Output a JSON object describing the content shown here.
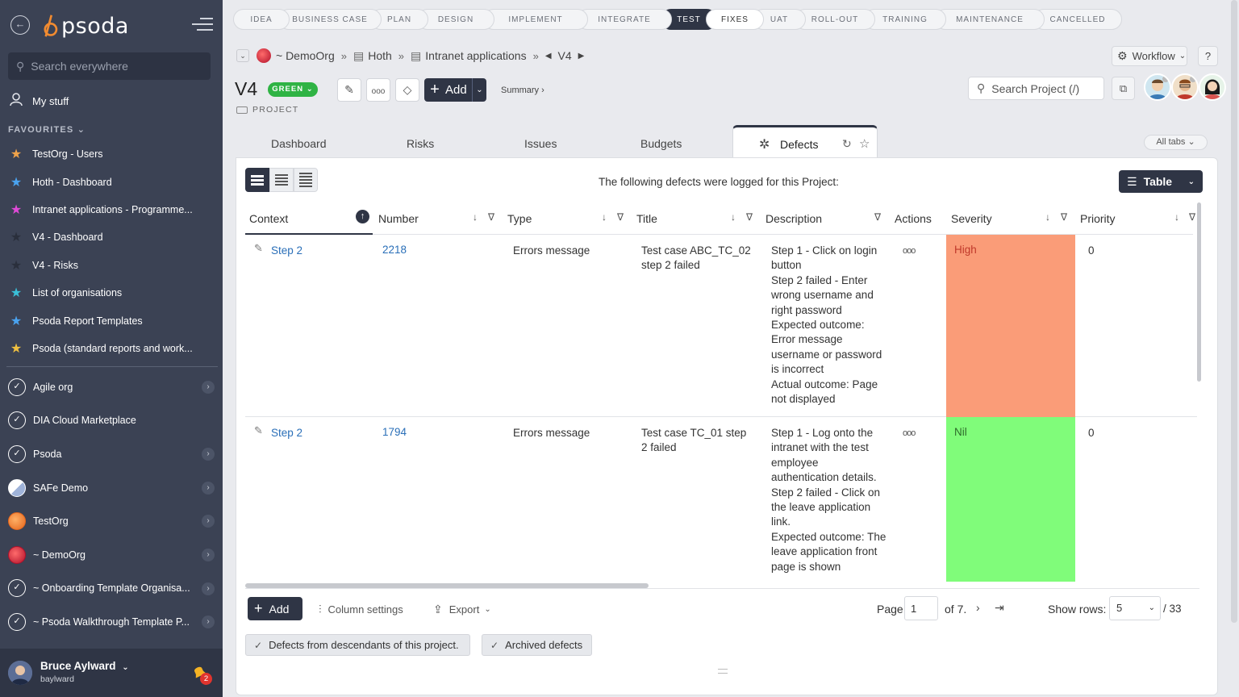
{
  "sidebar": {
    "brand": "psoda",
    "search_placeholder": "Search everywhere",
    "my_stuff": "My stuff",
    "favourites_heading": "FAVOURITES",
    "favourites": [
      {
        "label": "TestOrg - Users",
        "color": "#f0a34a"
      },
      {
        "label": "Hoth - Dashboard",
        "color": "#4aa3f0"
      },
      {
        "label": "Intranet applications - Programme...",
        "color": "#e04ad8"
      },
      {
        "label": "V4 - Dashboard",
        "color": "#2a2f3c"
      },
      {
        "label": "V4 - Risks",
        "color": "#2a2f3c"
      },
      {
        "label": "List of organisations",
        "color": "#3ac0d8"
      },
      {
        "label": "Psoda Report Templates",
        "color": "#4aa3f0"
      },
      {
        "label": "Psoda (standard reports and work...",
        "color": "#f0c040"
      }
    ],
    "orgs": [
      {
        "label": "Agile org",
        "chevron": true,
        "icon": "compass"
      },
      {
        "label": "DIA Cloud Marketplace",
        "chevron": false,
        "icon": "compass"
      },
      {
        "label": "Psoda",
        "chevron": true,
        "icon": "compass"
      },
      {
        "label": "SAFe Demo",
        "chevron": true,
        "icon": "safe"
      },
      {
        "label": "TestOrg",
        "chevron": true,
        "icon": "orange"
      },
      {
        "label": "~ DemoOrg",
        "chevron": true,
        "icon": "red"
      },
      {
        "label": "~ Onboarding Template Organisa...",
        "chevron": true,
        "icon": "compass"
      },
      {
        "label": "~ Psoda Walkthrough Template P...",
        "chevron": true,
        "icon": "compass"
      }
    ],
    "user": {
      "name": "Bruce Aylward",
      "handle": "baylward",
      "notifications": "2"
    }
  },
  "stages": [
    "IDEA",
    "BUSINESS CASE",
    "PLAN",
    "DESIGN",
    "IMPLEMENT",
    "INTEGRATE",
    "TEST",
    "FIXES",
    "UAT",
    "ROLL-OUT",
    "TRAINING",
    "MAINTENANCE",
    "CANCELLED"
  ],
  "active_stage": "TEST",
  "breadcrumb": {
    "org": "~ DemoOrg",
    "programme": "Hoth",
    "portfolio": "Intranet applications",
    "project": "V4"
  },
  "header": {
    "workflow": "Workflow",
    "help": "?",
    "title": "V4",
    "status": "GREEN",
    "type": "PROJECT",
    "add": "Add",
    "summary": "Summary ›",
    "search_placeholder": "Search Project (/)"
  },
  "tabs": {
    "items": [
      "Dashboard",
      "Risks",
      "Issues",
      "Budgets"
    ],
    "active": "Defects",
    "all_tabs": "All tabs"
  },
  "panel": {
    "caption": "The following defects were logged for this Project:",
    "view_mode": "Table",
    "columns": [
      "Context",
      "Number",
      "Type",
      "Title",
      "Description",
      "Actions",
      "Severity",
      "Priority"
    ],
    "rows": [
      {
        "context": "Step 2",
        "number": "2218",
        "type": "Errors message",
        "title": "Test case ABC_TC_02 step 2 failed",
        "description": "Step 1 - Click on login button\nStep 2 failed - Enter wrong username and right password\nExpected outcome: Error message username or password is incorrect\nActual outcome: Page not displayed",
        "severity": "High",
        "severity_color": "#fa9c78",
        "severity_text_color": "#c0392b",
        "priority": "0"
      },
      {
        "context": "Step 2",
        "number": "1794",
        "type": "Errors message",
        "title": "Test case TC_01 step 2 failed",
        "description": "Step 1 - Log onto the intranet with the test employee authentication details.\nStep 2 failed - Click on the leave application link.\nExpected outcome: The leave application front page is shown",
        "severity": "Nil",
        "severity_color": "#80fc7a",
        "severity_text_color": "#2d6a2a",
        "priority": "0"
      }
    ],
    "footer": {
      "add": "Add",
      "column_settings": "Column settings",
      "export": "Export",
      "page_label": "Page",
      "page_value": "1",
      "of_label": "of 7.",
      "show_rows_label": "Show rows:",
      "show_rows_value": "5",
      "total": "/ 33",
      "toggle_descendants": "Defects from descendants of this project.",
      "toggle_archived": "Archived defects"
    }
  }
}
